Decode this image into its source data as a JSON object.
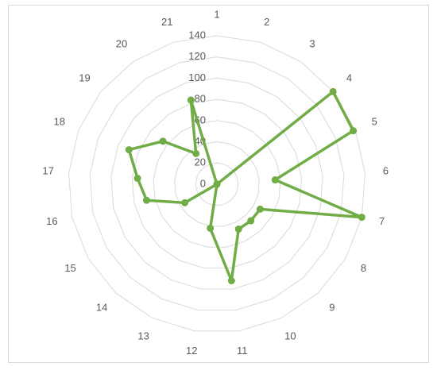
{
  "chart_data": {
    "type": "radar",
    "categories": [
      "1",
      "2",
      "3",
      "4",
      "5",
      "6",
      "7",
      "8",
      "9",
      "10",
      "11",
      "12",
      "13",
      "14",
      "15",
      "16",
      "17",
      "18",
      "19",
      "20",
      "21"
    ],
    "series": [
      {
        "color": "#70ad47",
        "values": [
          0,
          0,
          0,
          140,
          138,
          55,
          140,
          47,
          47,
          47,
          92,
          42,
          0,
          0,
          35,
          68,
          75,
          89,
          65,
          35,
          83
        ]
      }
    ],
    "ylim": [
      0,
      140
    ],
    "yticks": [
      0,
      20,
      40,
      60,
      80,
      100,
      120,
      140
    ],
    "grid": true
  }
}
